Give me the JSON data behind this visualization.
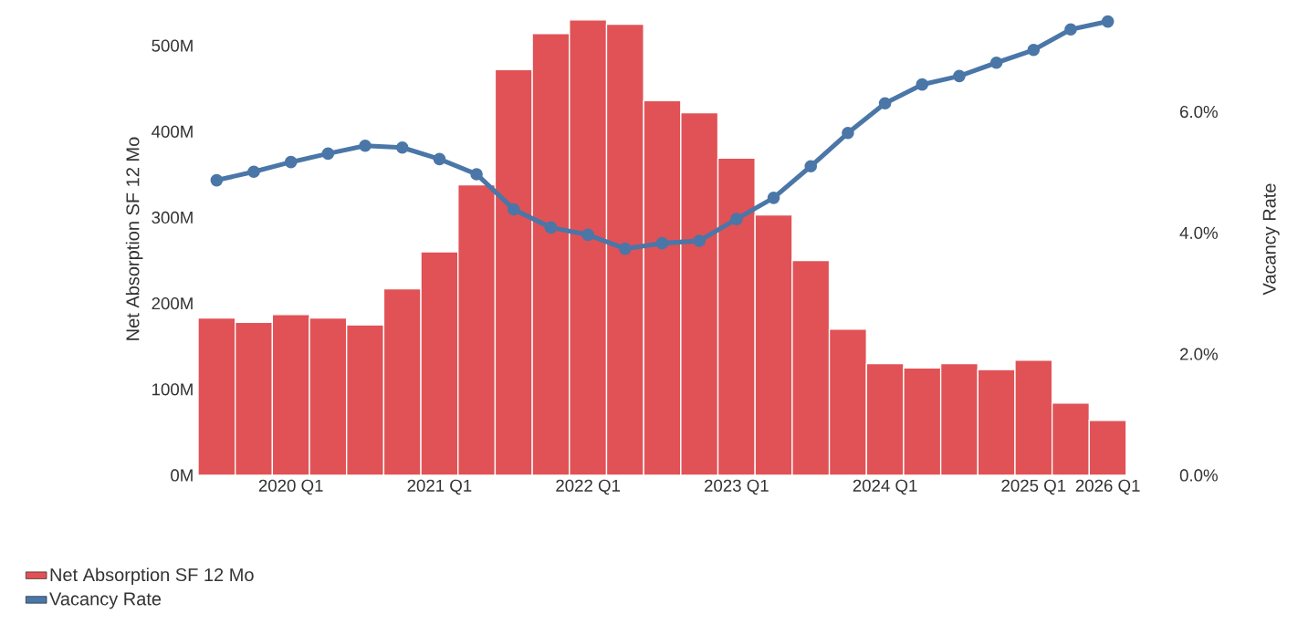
{
  "chart_data": {
    "type": "bar",
    "categories": [
      null,
      null,
      "2020 Q1",
      null,
      null,
      null,
      "2021 Q1",
      null,
      null,
      null,
      "2022 Q1",
      null,
      null,
      null,
      "2023 Q1",
      null,
      null,
      null,
      "2024 Q1",
      null,
      null,
      null,
      "2025 Q1",
      null,
      "2026 Q1"
    ],
    "series": [
      {
        "name": "Net Absorption SF 12 Mo",
        "color": "#e05256",
        "values": [
          183,
          178,
          187,
          183,
          175,
          217,
          260,
          338,
          472,
          514,
          530,
          525,
          436,
          422,
          369,
          303,
          250,
          170,
          130,
          125,
          130,
          123,
          134,
          84,
          64
        ]
      },
      {
        "name": "Vacancy Rate",
        "type": "line",
        "axis": "y2",
        "color": "#4a76a8",
        "values": [
          4.87,
          5.01,
          5.17,
          5.31,
          5.44,
          5.41,
          5.22,
          4.97,
          4.39,
          4.09,
          3.97,
          3.74,
          3.83,
          3.87,
          4.23,
          4.58,
          5.1,
          5.65,
          6.14,
          6.45,
          6.59,
          6.81,
          7.02,
          7.36,
          7.49
        ]
      }
    ],
    "ylabel": "Net Absorption SF 12 Mo",
    "y2label": "Vacancy Rate",
    "yticks": [
      {
        "value": 0,
        "label": "0M"
      },
      {
        "value": 100,
        "label": "100M"
      },
      {
        "value": 200,
        "label": "200M"
      },
      {
        "value": 300,
        "label": "300M"
      },
      {
        "value": 400,
        "label": "400M"
      },
      {
        "value": 500,
        "label": "500M"
      }
    ],
    "ylim": [
      0,
      550
    ],
    "y2lim": [
      0,
      7.8
    ],
    "y2ticks": [
      {
        "value": 0,
        "label": "0.0%"
      },
      {
        "value": 2,
        "label": "2.0%"
      },
      {
        "value": 4,
        "label": "4.0%"
      },
      {
        "value": 6,
        "label": "6.0%"
      }
    ],
    "marker": "circle",
    "legend": "bottom left"
  }
}
